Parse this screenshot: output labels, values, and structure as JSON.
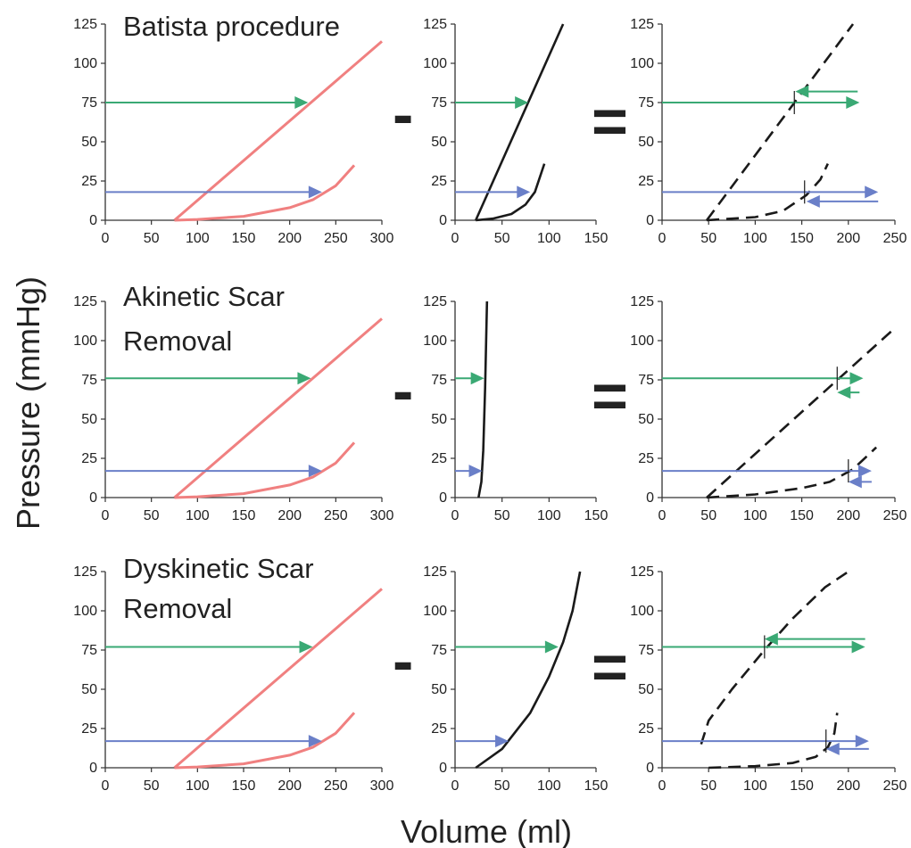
{
  "figure": {
    "ylabel": "Pressure (mmHg)",
    "xlabel": "Volume (ml)",
    "minus_sign": "-",
    "equals_sign": "="
  },
  "colors": {
    "ln": "#f08080",
    "st": "#1a1a1a",
    "green": "#3aa974",
    "blue": "#6a7fc8",
    "axis": "#333333"
  },
  "chart_data": [
    {
      "type": "line",
      "row_title": [
        "Batista procedure"
      ],
      "panel": "left",
      "ylim": [
        0,
        125
      ],
      "yticks": [
        0,
        25,
        50,
        75,
        100,
        125
      ],
      "xlim": [
        0,
        300
      ],
      "xticks": [
        0,
        50,
        100,
        150,
        200,
        250,
        300
      ],
      "series": [
        {
          "color": "ln",
          "dash": false,
          "x": [
            75,
            300
          ],
          "y": [
            0,
            114
          ]
        },
        {
          "color": "ln",
          "dash": false,
          "x": [
            75,
            100,
            150,
            200,
            225,
            250,
            270
          ],
          "y": [
            0,
            0.5,
            2.5,
            8,
            13,
            22,
            35
          ]
        }
      ],
      "arrows": [
        {
          "color": "green",
          "y": 75,
          "x1": 0,
          "x2": 220
        },
        {
          "color": "blue",
          "y": 18,
          "x1": 0,
          "x2": 235
        }
      ]
    },
    {
      "type": "line",
      "panel": "mid",
      "ylim": [
        0,
        125
      ],
      "yticks": [
        0,
        25,
        50,
        75,
        100,
        125
      ],
      "xlim": [
        0,
        150
      ],
      "xticks": [
        0,
        50,
        100,
        150
      ],
      "series": [
        {
          "color": "st",
          "dash": false,
          "x": [
            22,
            115
          ],
          "y": [
            0,
            125
          ]
        },
        {
          "color": "st",
          "dash": false,
          "x": [
            22,
            40,
            60,
            75,
            85,
            95
          ],
          "y": [
            0,
            1,
            4,
            10,
            18,
            36
          ]
        }
      ],
      "arrows": [
        {
          "color": "green",
          "y": 75,
          "x1": 0,
          "x2": 78
        },
        {
          "color": "blue",
          "y": 18,
          "x1": 0,
          "x2": 80
        }
      ]
    },
    {
      "type": "line",
      "panel": "right",
      "ylim": [
        0,
        125
      ],
      "yticks": [
        0,
        25,
        50,
        75,
        100,
        125
      ],
      "xlim": [
        0,
        250
      ],
      "xticks": [
        0,
        50,
        100,
        150,
        200,
        250
      ],
      "series": [
        {
          "color": "st",
          "dash": true,
          "x": [
            48,
            205
          ],
          "y": [
            0,
            125
          ]
        },
        {
          "color": "st",
          "dash": true,
          "x": [
            48,
            100,
            130,
            155,
            170,
            178
          ],
          "y": [
            0,
            2,
            6,
            16,
            26,
            36
          ]
        }
      ],
      "arrows": [
        {
          "color": "green",
          "y": 75,
          "x1": 0,
          "x2": 212
        },
        {
          "color": "green",
          "y": 82,
          "x1": 210,
          "x2": 143
        },
        {
          "color": "blue",
          "y": 18,
          "x1": 0,
          "x2": 232
        },
        {
          "color": "blue",
          "y": 12,
          "x1": 232,
          "x2": 155
        }
      ],
      "vmarks": [
        {
          "x": 142,
          "y": 75
        },
        {
          "x": 153,
          "y": 18
        }
      ]
    },
    {
      "type": "line",
      "row_title": [
        "Akinetic Scar",
        "Removal"
      ],
      "panel": "left",
      "ylim": [
        0,
        125
      ],
      "yticks": [
        0,
        25,
        50,
        75,
        100,
        125
      ],
      "xlim": [
        0,
        300
      ],
      "xticks": [
        0,
        50,
        100,
        150,
        200,
        250,
        300
      ],
      "series": [
        {
          "color": "ln",
          "dash": false,
          "x": [
            75,
            300
          ],
          "y": [
            0,
            114
          ]
        },
        {
          "color": "ln",
          "dash": false,
          "x": [
            75,
            100,
            150,
            200,
            225,
            250,
            270
          ],
          "y": [
            0,
            0.5,
            2.5,
            8,
            13,
            22,
            35
          ]
        }
      ],
      "arrows": [
        {
          "color": "green",
          "y": 76,
          "x1": 0,
          "x2": 223
        },
        {
          "color": "blue",
          "y": 17,
          "x1": 0,
          "x2": 235
        }
      ]
    },
    {
      "type": "line",
      "panel": "mid",
      "ylim": [
        0,
        125
      ],
      "yticks": [
        0,
        25,
        50,
        75,
        100,
        125
      ],
      "xlim": [
        0,
        150
      ],
      "xticks": [
        0,
        50,
        100,
        150
      ],
      "series": [
        {
          "color": "st",
          "dash": false,
          "x": [
            25,
            28,
            30,
            32,
            34
          ],
          "y": [
            0,
            10,
            30,
            70,
            125
          ]
        }
      ],
      "arrows": [
        {
          "color": "green",
          "y": 76,
          "x1": 0,
          "x2": 31
        },
        {
          "color": "blue",
          "y": 17,
          "x1": 0,
          "x2": 29
        }
      ]
    },
    {
      "type": "line",
      "panel": "right",
      "ylim": [
        0,
        125
      ],
      "yticks": [
        0,
        25,
        50,
        75,
        100,
        125
      ],
      "xlim": [
        0,
        250
      ],
      "xticks": [
        0,
        50,
        100,
        150,
        200,
        250
      ],
      "series": [
        {
          "color": "st",
          "dash": true,
          "x": [
            48,
            250
          ],
          "y": [
            0,
            108
          ]
        },
        {
          "color": "st",
          "dash": true,
          "x": [
            48,
            100,
            150,
            180,
            205,
            230
          ],
          "y": [
            0,
            2,
            6,
            10,
            18,
            32
          ]
        }
      ],
      "arrows": [
        {
          "color": "green",
          "y": 76,
          "x1": 0,
          "x2": 216
        },
        {
          "color": "green",
          "y": 67,
          "x1": 212,
          "x2": 188
        },
        {
          "color": "blue",
          "y": 17,
          "x1": 0,
          "x2": 225
        },
        {
          "color": "blue",
          "y": 10,
          "x1": 225,
          "x2": 200
        }
      ],
      "vmarks": [
        {
          "x": 188,
          "y": 76
        },
        {
          "x": 200,
          "y": 17
        }
      ]
    },
    {
      "type": "line",
      "row_title": [
        "Dyskinetic Scar",
        "Removal"
      ],
      "panel": "left",
      "ylim": [
        0,
        125
      ],
      "yticks": [
        0,
        25,
        50,
        75,
        100,
        125
      ],
      "xlim": [
        0,
        300
      ],
      "xticks": [
        0,
        50,
        100,
        150,
        200,
        250,
        300
      ],
      "series": [
        {
          "color": "ln",
          "dash": false,
          "x": [
            75,
            300
          ],
          "y": [
            0,
            114
          ]
        },
        {
          "color": "ln",
          "dash": false,
          "x": [
            75,
            100,
            150,
            200,
            225,
            250,
            270
          ],
          "y": [
            0,
            0.5,
            2.5,
            8,
            13,
            22,
            35
          ]
        }
      ],
      "arrows": [
        {
          "color": "green",
          "y": 77,
          "x1": 0,
          "x2": 225
        },
        {
          "color": "blue",
          "y": 17,
          "x1": 0,
          "x2": 235
        }
      ]
    },
    {
      "type": "line",
      "panel": "mid",
      "ylim": [
        0,
        125
      ],
      "yticks": [
        0,
        25,
        50,
        75,
        100,
        125
      ],
      "xlim": [
        0,
        150
      ],
      "xticks": [
        0,
        50,
        100,
        150
      ],
      "series": [
        {
          "color": "st",
          "dash": false,
          "x": [
            22,
            50,
            80,
            100,
            115,
            125,
            133
          ],
          "y": [
            0,
            12,
            35,
            58,
            80,
            100,
            125
          ]
        }
      ],
      "arrows": [
        {
          "color": "green",
          "y": 77,
          "x1": 0,
          "x2": 110
        },
        {
          "color": "blue",
          "y": 17,
          "x1": 0,
          "x2": 57
        }
      ]
    },
    {
      "type": "line",
      "panel": "right",
      "ylim": [
        0,
        125
      ],
      "yticks": [
        0,
        25,
        50,
        75,
        100,
        125
      ],
      "xlim": [
        0,
        250
      ],
      "xticks": [
        0,
        50,
        100,
        150,
        200,
        250
      ],
      "series": [
        {
          "color": "st",
          "dash": true,
          "x": [
            42,
            50,
            75,
            110,
            140,
            175,
            200
          ],
          "y": [
            15,
            30,
            50,
            75,
            95,
            115,
            125
          ]
        },
        {
          "color": "st",
          "dash": true,
          "x": [
            50,
            100,
            140,
            165,
            178,
            185,
            188
          ],
          "y": [
            0,
            1,
            3,
            7,
            13,
            22,
            35
          ]
        }
      ],
      "arrows": [
        {
          "color": "green",
          "y": 77,
          "x1": 0,
          "x2": 218
        },
        {
          "color": "green",
          "y": 82,
          "x1": 218,
          "x2": 110
        },
        {
          "color": "blue",
          "y": 17,
          "x1": 0,
          "x2": 222
        },
        {
          "color": "blue",
          "y": 12,
          "x1": 222,
          "x2": 176
        }
      ],
      "vmarks": [
        {
          "x": 110,
          "y": 77
        },
        {
          "x": 176,
          "y": 17
        }
      ]
    }
  ]
}
